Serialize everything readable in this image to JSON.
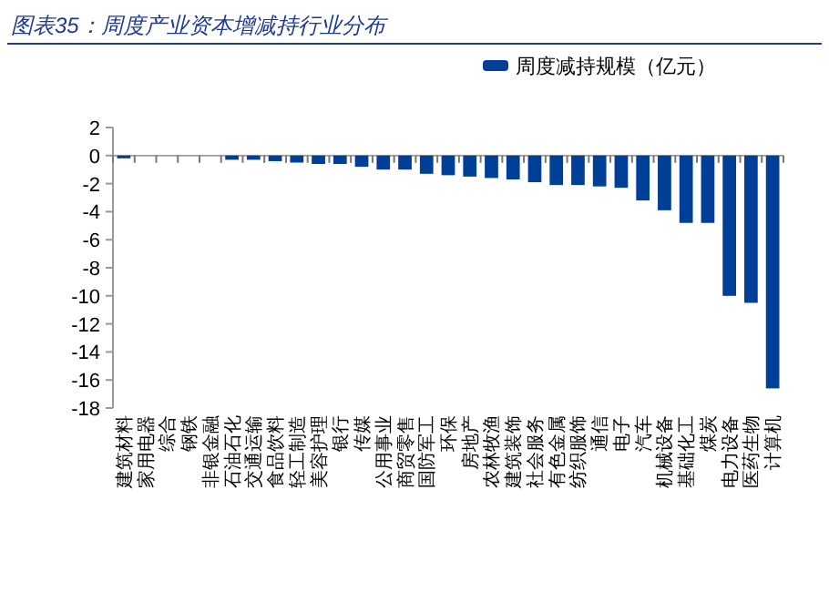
{
  "chart_data": {
    "type": "bar",
    "title": "图表35：周度产业资本增减持行业分布",
    "categories": [
      "建筑材料",
      "家用电器",
      "综合",
      "钢铁",
      "非银金融",
      "石油石化",
      "交通运输",
      "食品饮料",
      "轻工制造",
      "美容护理",
      "银行",
      "传媒",
      "公用事业",
      "商贸零售",
      "国防军工",
      "环保",
      "房地产",
      "农林牧渔",
      "建筑装饰",
      "社会服务",
      "有色金属",
      "纺织服饰",
      "通信",
      "电子",
      "汽车",
      "机械设备",
      "基础化工",
      "煤炭",
      "电力设备",
      "医药生物",
      "计算机"
    ],
    "series": [
      {
        "name": "周度减持规模（亿元）",
        "color": "#003f98",
        "values": [
          -0.2,
          0,
          0,
          0,
          0,
          -0.3,
          -0.3,
          -0.4,
          -0.5,
          -0.6,
          -0.6,
          -0.8,
          -1.0,
          -1.0,
          -1.3,
          -1.4,
          -1.5,
          -1.6,
          -1.7,
          -1.9,
          -2.1,
          -2.1,
          -2.2,
          -2.3,
          -3.2,
          -3.9,
          -4.8,
          -4.8,
          -10.0,
          -10.5,
          -16.6
        ]
      }
    ],
    "ylim": [
      -18,
      2
    ],
    "yticks": [
      2,
      0,
      -2,
      -4,
      -6,
      -8,
      -10,
      -12,
      -14,
      -16,
      -18
    ],
    "legend": "top right"
  }
}
